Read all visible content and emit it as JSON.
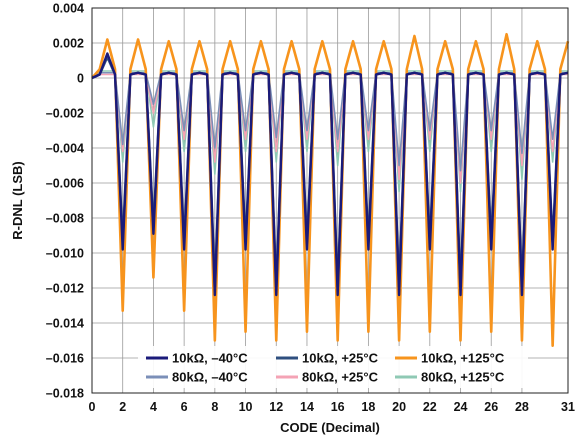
{
  "chart_data": {
    "type": "line",
    "xlabel": "CODE (Decimal)",
    "ylabel": "R-DNL (LSB)",
    "xlim": [
      0,
      31
    ],
    "ylim": [
      -0.018,
      0.004
    ],
    "x_ticks": [
      0,
      2,
      4,
      6,
      8,
      10,
      12,
      14,
      16,
      18,
      20,
      22,
      24,
      26,
      28,
      31
    ],
    "x_tick_labels": [
      "0",
      "2",
      "4",
      "6",
      "8",
      "10",
      "12",
      "14",
      "16",
      "18",
      "20",
      "22",
      "24",
      "26",
      "28",
      "31"
    ],
    "y_ticks": [
      0.004,
      0.002,
      0,
      -0.002,
      -0.004,
      -0.006,
      -0.008,
      -0.01,
      -0.012,
      -0.014,
      -0.016,
      -0.018
    ],
    "y_tick_labels": [
      "0.004",
      "0.002",
      "0",
      "–0.002",
      "–0.004",
      "–0.006",
      "–0.008",
      "–0.010",
      "–0.012",
      "–0.014",
      "–0.016",
      "–0.018"
    ],
    "grid": true,
    "legend_position": "bottom",
    "x": [
      0,
      0.5,
      1,
      1.5,
      2,
      2.5,
      3,
      3.5,
      4,
      4.5,
      5,
      5.5,
      6,
      6.5,
      7,
      7.5,
      8,
      8.5,
      9,
      9.5,
      10,
      10.5,
      11,
      11.5,
      12,
      12.5,
      13,
      13.5,
      14,
      14.5,
      15,
      15.5,
      16,
      16.5,
      17,
      17.5,
      18,
      18.5,
      19,
      19.5,
      20,
      20.5,
      21,
      21.5,
      22,
      22.5,
      23,
      23.5,
      24,
      24.5,
      25,
      25.5,
      26,
      26.5,
      27,
      27.5,
      28,
      28.5,
      29,
      29.5,
      30,
      30.5,
      31
    ],
    "series": [
      {
        "name": "10kΩ, –40°C",
        "color": "#1a1a7a",
        "values": [
          0,
          0.0002,
          0.0014,
          0.0002,
          -0.0098,
          0.0002,
          0.0003,
          0.0002,
          -0.0089,
          0.0002,
          0.0003,
          0.0002,
          -0.0098,
          0.0002,
          0.0003,
          0.0002,
          -0.0124,
          0.0002,
          0.0003,
          0.0002,
          -0.0098,
          0.0002,
          0.0003,
          0.0002,
          -0.0124,
          0.0002,
          0.0003,
          0.0002,
          -0.0098,
          0.0002,
          0.0003,
          0.0002,
          -0.0124,
          0.0002,
          0.0003,
          0.0002,
          -0.0098,
          0.0002,
          0.0003,
          0.0002,
          -0.0124,
          0.0002,
          0.0003,
          0.0002,
          -0.0098,
          0.0002,
          0.0003,
          0.0002,
          -0.0124,
          0.0002,
          0.0003,
          0.0002,
          -0.0098,
          0.0002,
          0.0003,
          0.0002,
          -0.0124,
          0.0002,
          0.0003,
          0.0002,
          -0.0098,
          0.0002,
          0.0003
        ]
      },
      {
        "name": "10kΩ, +25°C",
        "color": "#2f4f7f",
        "values": [
          0,
          0.0002,
          0.0012,
          0.0002,
          -0.0094,
          0.0002,
          0.0003,
          0.0002,
          -0.0085,
          0.0002,
          0.0003,
          0.0002,
          -0.0094,
          0.0002,
          0.0003,
          0.0002,
          -0.012,
          0.0002,
          0.0003,
          0.0002,
          -0.0094,
          0.0002,
          0.0003,
          0.0002,
          -0.012,
          0.0002,
          0.0003,
          0.0002,
          -0.0094,
          0.0002,
          0.0003,
          0.0002,
          -0.012,
          0.0002,
          0.0003,
          0.0002,
          -0.0094,
          0.0002,
          0.0003,
          0.0002,
          -0.012,
          0.0002,
          0.0003,
          0.0002,
          -0.0094,
          0.0002,
          0.0003,
          0.0002,
          -0.012,
          0.0002,
          0.0003,
          0.0002,
          -0.0094,
          0.0002,
          0.0003,
          0.0002,
          -0.012,
          0.0002,
          0.0003,
          0.0002,
          -0.0094,
          0.0002,
          0.0003
        ]
      },
      {
        "name": "10kΩ, +125°C",
        "color": "#f7941d",
        "values": [
          0,
          0.0005,
          0.0022,
          0.0005,
          -0.0133,
          0.0005,
          0.0022,
          0.0005,
          -0.0114,
          0.0005,
          0.0021,
          0.0005,
          -0.0133,
          0.0005,
          0.0021,
          0.0005,
          -0.015,
          0.0005,
          0.0021,
          0.0005,
          -0.0145,
          0.0005,
          0.0021,
          0.0005,
          -0.015,
          0.0005,
          0.0021,
          0.0005,
          -0.0145,
          0.0005,
          0.0021,
          0.0005,
          -0.015,
          0.0005,
          0.0021,
          0.0005,
          -0.0145,
          0.0005,
          0.0021,
          0.0005,
          -0.015,
          0.0005,
          0.0024,
          0.0005,
          -0.0145,
          0.0005,
          0.0021,
          0.0005,
          -0.015,
          0.0005,
          0.0021,
          0.0005,
          -0.0145,
          0.0005,
          0.0025,
          0.0005,
          -0.015,
          0.0005,
          0.0021,
          0.0005,
          -0.0153,
          0.0005,
          0.0021
        ]
      },
      {
        "name": "80kΩ, –40°C",
        "color": "#7b8fb8",
        "values": [
          0,
          0.0003,
          0.0003,
          0.0003,
          -0.0038,
          0.0003,
          0.0003,
          0.0003,
          -0.0015,
          0.0003,
          0.0003,
          0.0003,
          -0.003,
          0.0003,
          0.0003,
          0.0003,
          -0.004,
          0.0003,
          0.0003,
          0.0003,
          -0.003,
          0.0003,
          0.0003,
          0.0003,
          -0.0034,
          0.0003,
          0.0003,
          0.0003,
          -0.003,
          0.0003,
          0.0003,
          0.0003,
          -0.0035,
          0.0003,
          0.0003,
          0.0003,
          -0.003,
          0.0003,
          0.0003,
          0.0003,
          -0.005,
          0.0003,
          0.0003,
          0.0003,
          -0.003,
          0.0003,
          0.0003,
          0.0003,
          -0.0053,
          0.0003,
          0.0003,
          0.0003,
          -0.003,
          0.0003,
          0.0003,
          0.0003,
          -0.0043,
          0.0003,
          0.0003,
          0.0003,
          -0.0035,
          0.0003,
          0.0003
        ]
      },
      {
        "name": "80kΩ, +25°C",
        "color": "#f4a3b5",
        "values": [
          0,
          0.0002,
          0.0002,
          0.0002,
          -0.0042,
          0.0002,
          0.0002,
          0.0002,
          -0.002,
          0.0002,
          0.0002,
          0.0002,
          -0.0035,
          0.0002,
          0.0002,
          0.0002,
          -0.0048,
          0.0002,
          0.0002,
          0.0002,
          -0.0035,
          0.0002,
          0.0002,
          0.0002,
          -0.0042,
          0.0002,
          0.0002,
          0.0002,
          -0.0035,
          0.0002,
          0.0002,
          0.0002,
          -0.0042,
          0.0002,
          0.0002,
          0.0002,
          -0.0035,
          0.0002,
          0.0002,
          0.0002,
          -0.0058,
          0.0002,
          0.0002,
          0.0002,
          -0.0035,
          0.0002,
          0.0002,
          0.0002,
          -0.006,
          0.0002,
          0.0002,
          0.0002,
          -0.0035,
          0.0002,
          0.0002,
          0.0002,
          -0.005,
          0.0002,
          0.0002,
          0.0002,
          -0.0042,
          0.0002,
          0.0002
        ]
      },
      {
        "name": "80kΩ, +125°C",
        "color": "#8fc9b4",
        "values": [
          0,
          0.0004,
          0.0004,
          0.0004,
          -0.0048,
          0.0004,
          0.0004,
          0.0004,
          -0.0028,
          0.0004,
          0.0004,
          0.0004,
          -0.0042,
          0.0004,
          0.0004,
          0.0004,
          -0.0055,
          0.0004,
          0.0004,
          0.0004,
          -0.0042,
          0.0004,
          0.0004,
          0.0004,
          -0.0048,
          0.0004,
          0.0004,
          0.0004,
          -0.0042,
          0.0004,
          0.0004,
          0.0004,
          -0.005,
          0.0004,
          0.0004,
          0.0004,
          -0.0042,
          0.0004,
          0.0004,
          0.0004,
          -0.0065,
          0.0004,
          0.0004,
          0.0004,
          -0.0042,
          0.0004,
          0.0004,
          0.0004,
          -0.0065,
          0.0004,
          0.0004,
          0.0004,
          -0.0042,
          0.0004,
          0.0004,
          0.0004,
          -0.0058,
          0.0004,
          0.0004,
          0.0004,
          -0.0048,
          0.0004,
          0.0004
        ]
      }
    ],
    "legend_order": [
      0,
      1,
      2,
      3,
      4,
      5
    ]
  }
}
